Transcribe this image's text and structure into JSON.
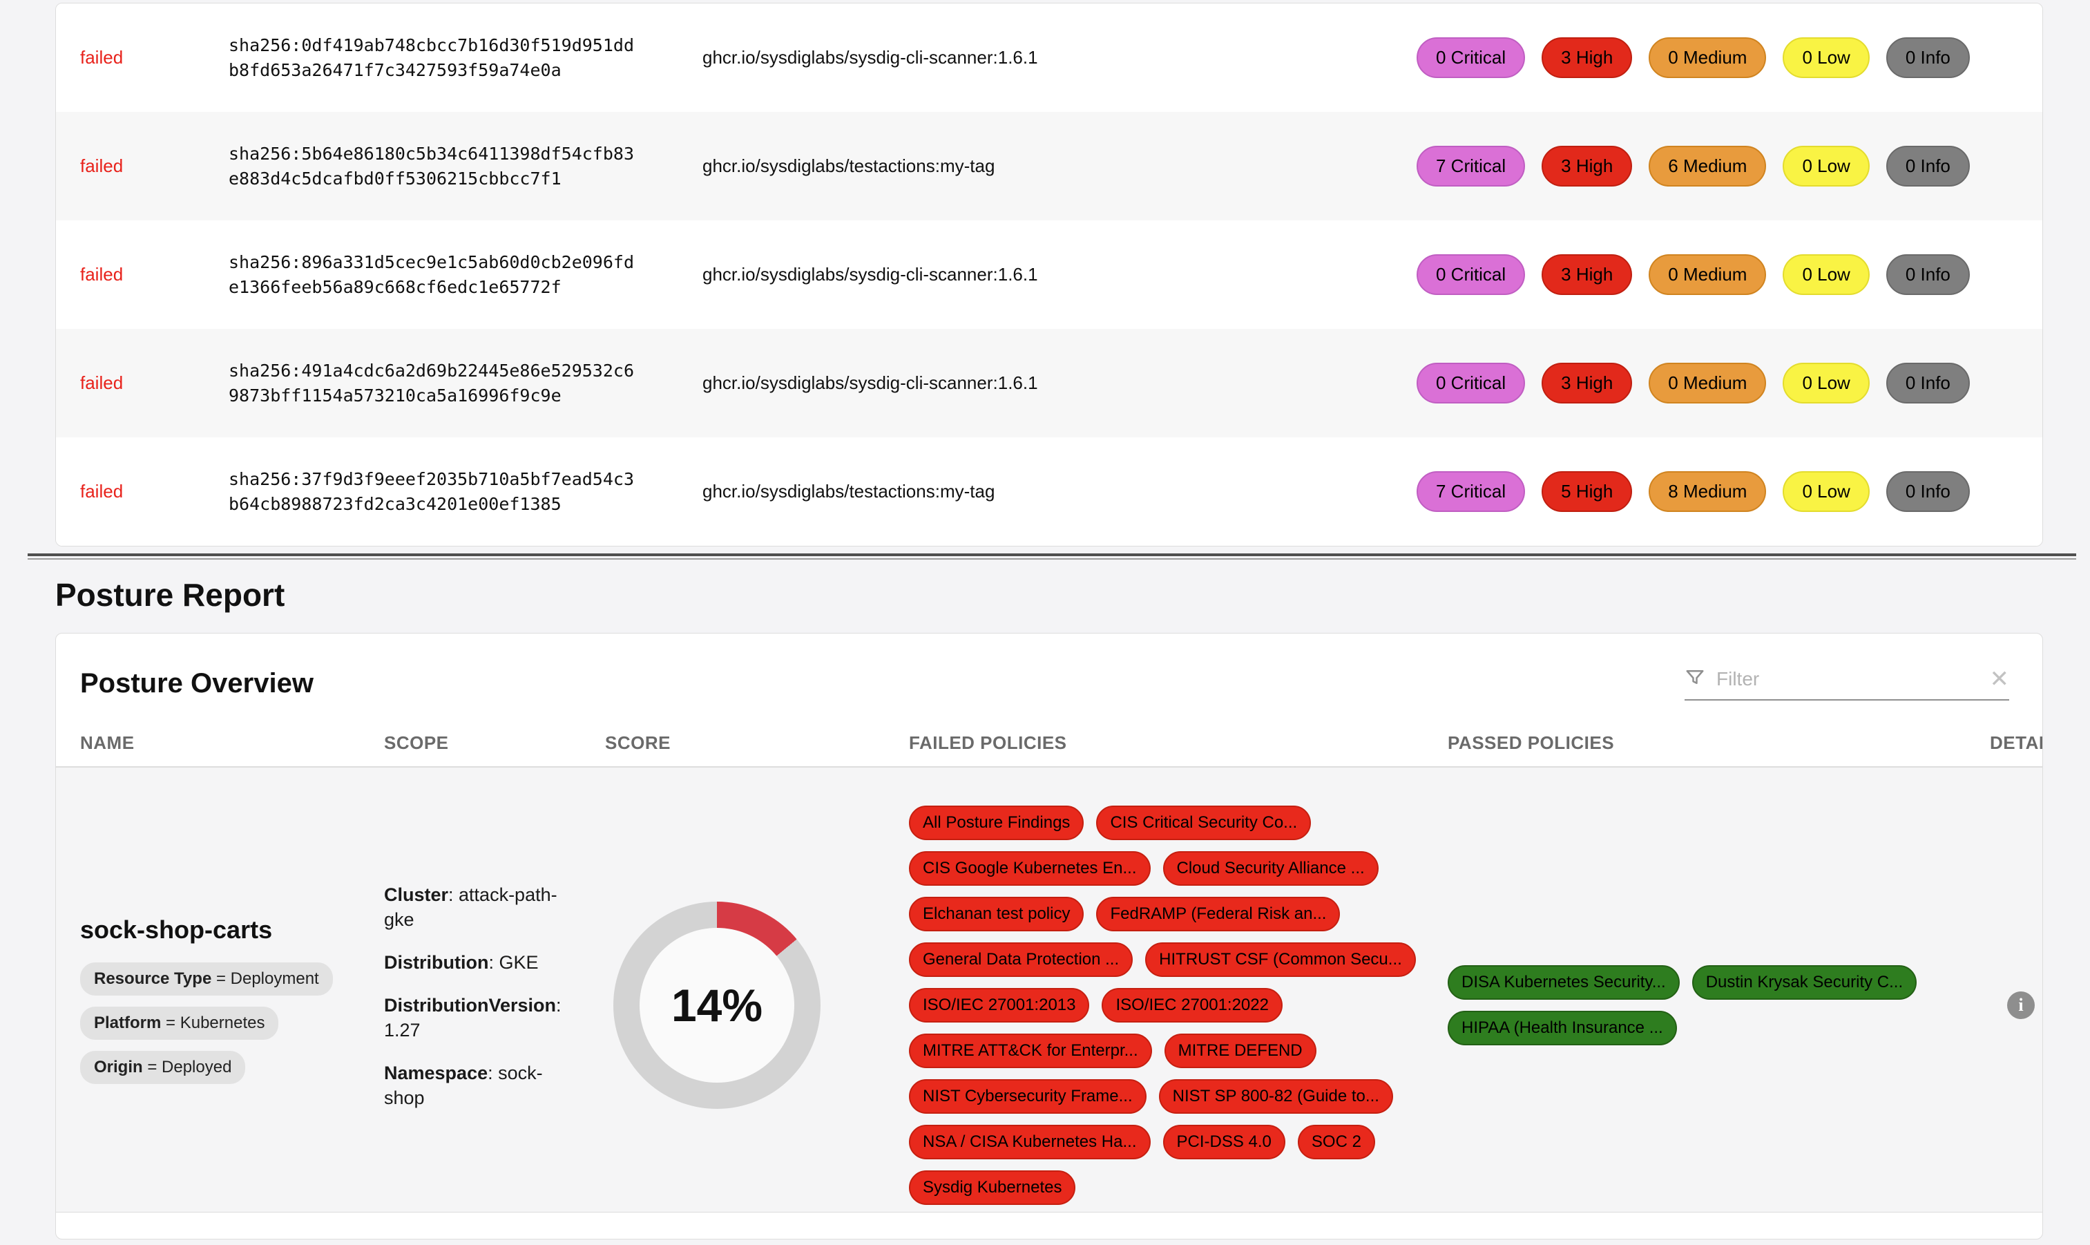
{
  "colors": {
    "critical": "#da70d6",
    "high": "#e2291b",
    "medium": "#e89b3d",
    "low": "#f9f344",
    "info": "#7f7f7f",
    "failed_status": "#e8221b",
    "failed_policy": "#e8291c",
    "passed_policy": "#2e7d1f",
    "score_arc": "#d63b45",
    "score_track": "#d3d3d3"
  },
  "icons": {
    "filter": "funnel",
    "clear_glyph": "✕",
    "info_glyph": "i"
  },
  "scan_table": {
    "rows": [
      {
        "status": "failed",
        "digest": [
          "sha256:0df419ab748cbcc7b16d30f519d951dd",
          "b8fd653a26471f7c3427593f59a74e0a"
        ],
        "image": "ghcr.io/sysdiglabs/sysdig-cli-scanner:1.6.1",
        "severities": [
          {
            "label": "0 Critical",
            "type": "critical"
          },
          {
            "label": "3 High",
            "type": "high"
          },
          {
            "label": "0 Medium",
            "type": "medium"
          },
          {
            "label": "0 Low",
            "type": "low"
          },
          {
            "label": "0 Info",
            "type": "info"
          }
        ]
      },
      {
        "status": "failed",
        "digest": [
          "sha256:5b64e86180c5b34c6411398df54cfb83",
          "e883d4c5dcafbd0ff5306215cbbcc7f1"
        ],
        "image": "ghcr.io/sysdiglabs/testactions:my-tag",
        "severities": [
          {
            "label": "7 Critical",
            "type": "critical"
          },
          {
            "label": "3 High",
            "type": "high"
          },
          {
            "label": "6 Medium",
            "type": "medium"
          },
          {
            "label": "0 Low",
            "type": "low"
          },
          {
            "label": "0 Info",
            "type": "info"
          }
        ]
      },
      {
        "status": "failed",
        "digest": [
          "sha256:896a331d5cec9e1c5ab60d0cb2e096fd",
          "e1366feeb56a89c668cf6edc1e65772f"
        ],
        "image": "ghcr.io/sysdiglabs/sysdig-cli-scanner:1.6.1",
        "severities": [
          {
            "label": "0 Critical",
            "type": "critical"
          },
          {
            "label": "3 High",
            "type": "high"
          },
          {
            "label": "0 Medium",
            "type": "medium"
          },
          {
            "label": "0 Low",
            "type": "low"
          },
          {
            "label": "0 Info",
            "type": "info"
          }
        ]
      },
      {
        "status": "failed",
        "digest": [
          "sha256:491a4cdc6a2d69b22445e86e529532c6",
          "9873bff1154a573210ca5a16996f9c9e"
        ],
        "image": "ghcr.io/sysdiglabs/sysdig-cli-scanner:1.6.1",
        "severities": [
          {
            "label": "0 Critical",
            "type": "critical"
          },
          {
            "label": "3 High",
            "type": "high"
          },
          {
            "label": "0 Medium",
            "type": "medium"
          },
          {
            "label": "0 Low",
            "type": "low"
          },
          {
            "label": "0 Info",
            "type": "info"
          }
        ]
      },
      {
        "status": "failed",
        "digest": [
          "sha256:37f9d3f9eeef2035b710a5bf7ead54c3",
          "b64cb8988723fd2ca3c4201e00ef1385"
        ],
        "image": "ghcr.io/sysdiglabs/testactions:my-tag",
        "severities": [
          {
            "label": "7 Critical",
            "type": "critical"
          },
          {
            "label": "5 High",
            "type": "high"
          },
          {
            "label": "8 Medium",
            "type": "medium"
          },
          {
            "label": "0 Low",
            "type": "low"
          },
          {
            "label": "0 Info",
            "type": "info"
          }
        ]
      }
    ]
  },
  "posture": {
    "section_title": "Posture Report",
    "panel_title": "Posture Overview",
    "filter": {
      "placeholder": "Filter"
    },
    "columns": [
      "NAME",
      "SCOPE",
      "SCORE",
      "FAILED POLICIES",
      "PASSED POLICIES",
      "DETAILS"
    ],
    "row": {
      "name": "sock-shop-carts",
      "tags": [
        {
          "key": "Resource Type",
          "value": "Deployment"
        },
        {
          "key": "Platform",
          "value": "Kubernetes"
        },
        {
          "key": "Origin",
          "value": "Deployed"
        }
      ],
      "scope": [
        {
          "key": "Cluster",
          "value": "attack-path-gke"
        },
        {
          "key": "Distribution",
          "value": "GKE"
        },
        {
          "key": "DistributionVersion",
          "value": "1.27"
        },
        {
          "key": "Namespace",
          "value": "sock-shop"
        }
      ],
      "score": {
        "percent": 14,
        "label": "14%"
      },
      "failed_policies": [
        "All Posture Findings",
        "CIS Critical Security Co...",
        "CIS Google Kubernetes En...",
        "Cloud Security Alliance ...",
        "Elchanan test policy",
        "FedRAMP (Federal Risk an...",
        "General Data Protection ...",
        "HITRUST CSF (Common Secu...",
        "ISO/IEC 27001:2013",
        "ISO/IEC 27001:2022",
        "MITRE ATT&CK for Enterpr...",
        "MITRE DEFEND",
        "NIST Cybersecurity Frame...",
        "NIST SP 800-82 (Guide to...",
        "NSA / CISA Kubernetes Ha...",
        "PCI-DSS 4.0",
        "SOC 2",
        "Sysdig Kubernetes"
      ],
      "passed_policies": [
        "DISA Kubernetes Security...",
        "Dustin Krysak Security C...",
        "HIPAA (Health Insurance ..."
      ]
    }
  }
}
